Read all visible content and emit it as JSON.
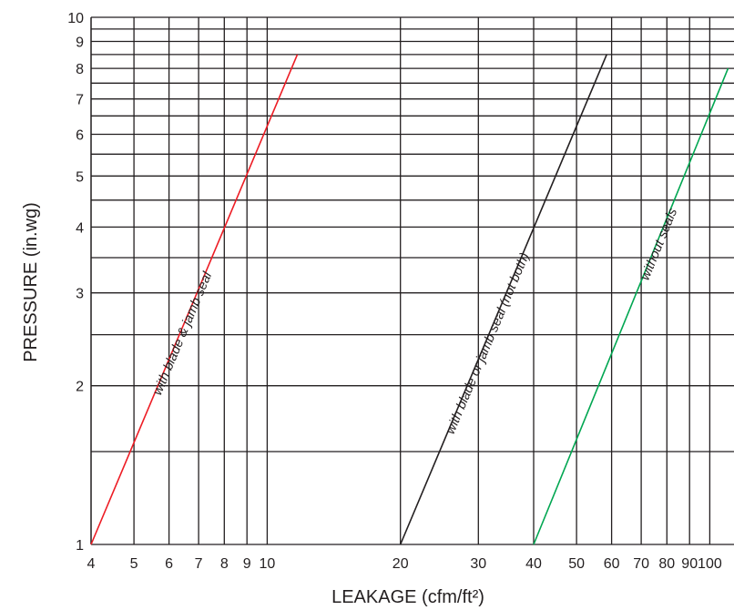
{
  "chart_data": {
    "type": "line",
    "title": "",
    "xlabel": "LEAKAGE (cfm/ft²)",
    "ylabel": "PRESSURE (in.wg)",
    "xscale": "log",
    "yscale": "log",
    "xlim": [
      4,
      110
    ],
    "ylim": [
      1,
      10
    ],
    "grid": true,
    "x_ticks": [
      {
        "v": 4,
        "label": "4"
      },
      {
        "v": 5,
        "label": "5"
      },
      {
        "v": 6,
        "label": "6"
      },
      {
        "v": 7,
        "label": "7"
      },
      {
        "v": 8,
        "label": "8"
      },
      {
        "v": 9,
        "label": "9"
      },
      {
        "v": 10,
        "label": "10"
      },
      {
        "v": 20,
        "label": "20"
      },
      {
        "v": 30,
        "label": "30"
      },
      {
        "v": 40,
        "label": "40"
      },
      {
        "v": 50,
        "label": "50"
      },
      {
        "v": 60,
        "label": "60"
      },
      {
        "v": 70,
        "label": "70"
      },
      {
        "v": 80,
        "label": "80"
      },
      {
        "v": 90,
        "label": "90"
      },
      {
        "v": 100,
        "label": "100"
      }
    ],
    "y_ticks": [
      {
        "v": 1,
        "label": "1"
      },
      {
        "v": 2,
        "label": "2"
      },
      {
        "v": 3,
        "label": "3"
      },
      {
        "v": 4,
        "label": "4"
      },
      {
        "v": 5,
        "label": "5"
      },
      {
        "v": 6,
        "label": "6"
      },
      {
        "v": 7,
        "label": "7"
      },
      {
        "v": 8,
        "label": "8"
      },
      {
        "v": 9,
        "label": "9"
      },
      {
        "v": 10,
        "label": "10"
      }
    ],
    "y_minor": [
      1.5,
      2.5,
      3.5,
      4.5,
      5.5,
      6.5,
      7.5,
      8.5,
      9.5
    ],
    "series": [
      {
        "name": "with blade & jamb seal",
        "color": "#ed1c24",
        "x": [
          4,
          11.7
        ],
        "y": [
          1,
          8.5
        ]
      },
      {
        "name": "with blade or jamb seal (not both)",
        "color": "#231f20",
        "x": [
          20,
          58.5
        ],
        "y": [
          1,
          8.5
        ]
      },
      {
        "name": "without  seals",
        "color": "#00a651",
        "x": [
          40,
          110
        ],
        "y": [
          1,
          8.0
        ]
      }
    ]
  }
}
